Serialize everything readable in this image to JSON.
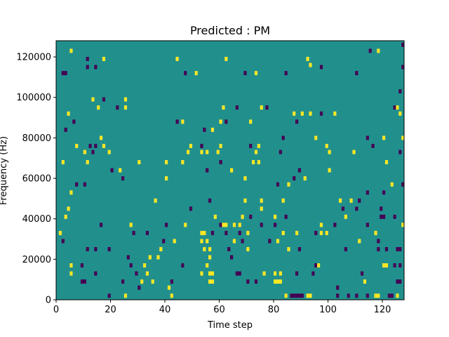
{
  "chart_data": {
    "type": "heatmap",
    "title": "Predicted : PM",
    "xlabel": "Time step",
    "ylabel": "Frequency (Hz)",
    "xlim": [
      0,
      128
    ],
    "ylim": [
      0,
      128000
    ],
    "xticks": [
      0,
      20,
      40,
      60,
      80,
      100,
      120
    ],
    "xtick_labels": [
      "0",
      "20",
      "40",
      "60",
      "80",
      "100",
      "120"
    ],
    "yticks": [
      0,
      20000,
      40000,
      60000,
      80000,
      100000,
      120000
    ],
    "ytick_labels": [
      "0",
      "20000",
      "40000",
      "60000",
      "80000",
      "100000",
      "120000"
    ],
    "grid": false,
    "value_range": [
      -1,
      1
    ],
    "colors": {
      "background": "#21908d",
      "high": "#fde725",
      "low": "#440154"
    },
    "cells": [
      {
        "t": 127,
        "f": 126000,
        "v": -1
      },
      {
        "t": 5,
        "f": 123000,
        "v": 1
      },
      {
        "t": 115,
        "f": 123000,
        "v": -1
      },
      {
        "t": 118,
        "f": 123000,
        "v": 1
      },
      {
        "t": 11,
        "f": 119000,
        "v": -1
      },
      {
        "t": 17,
        "f": 119000,
        "v": 1
      },
      {
        "t": 44,
        "f": 119000,
        "v": 1
      },
      {
        "t": 62,
        "f": 119000,
        "v": 1
      },
      {
        "t": 92,
        "f": 119000,
        "v": 1
      },
      {
        "t": 93,
        "f": 116000,
        "v": 1
      },
      {
        "t": 2,
        "f": 112000,
        "v": -1
      },
      {
        "t": 3,
        "f": 112000,
        "v": -1
      },
      {
        "t": 47,
        "f": 112000,
        "v": -1
      },
      {
        "t": 51,
        "f": 112000,
        "v": 1
      },
      {
        "t": 69,
        "f": 112000,
        "v": -1
      },
      {
        "t": 73,
        "f": 112000,
        "v": 1
      },
      {
        "t": 84,
        "f": 112000,
        "v": -1
      },
      {
        "t": 110,
        "f": 112000,
        "v": -1
      },
      {
        "t": 11,
        "f": 115000,
        "v": -1
      },
      {
        "t": 14,
        "f": 115000,
        "v": -1
      },
      {
        "t": 97,
        "f": 115000,
        "v": -1
      },
      {
        "t": 127,
        "f": 115000,
        "v": -1
      },
      {
        "t": 126,
        "f": 103000,
        "v": -1
      },
      {
        "t": 13,
        "f": 99000,
        "v": 1
      },
      {
        "t": 17,
        "f": 99000,
        "v": -1
      },
      {
        "t": 25,
        "f": 99000,
        "v": 1
      },
      {
        "t": 15,
        "f": 95000,
        "v": 1
      },
      {
        "t": 22,
        "f": 95000,
        "v": -1
      },
      {
        "t": 25,
        "f": 95000,
        "v": 1
      },
      {
        "t": 61,
        "f": 95000,
        "v": 1
      },
      {
        "t": 66,
        "f": 95000,
        "v": -1
      },
      {
        "t": 75,
        "f": 95000,
        "v": 1
      },
      {
        "t": 77,
        "f": 95000,
        "v": -1
      },
      {
        "t": 124,
        "f": 95000,
        "v": -1
      },
      {
        "t": 125,
        "f": 95000,
        "v": 1
      },
      {
        "t": 4,
        "f": 92000,
        "v": 1
      },
      {
        "t": 87,
        "f": 92000,
        "v": 1
      },
      {
        "t": 90,
        "f": 92000,
        "v": 1
      },
      {
        "t": 93,
        "f": 92000,
        "v": 1
      },
      {
        "t": 97,
        "f": 92000,
        "v": -1
      },
      {
        "t": 102,
        "f": 92000,
        "v": 1
      },
      {
        "t": 126,
        "f": 92000,
        "v": 1
      },
      {
        "t": 6,
        "f": 88000,
        "v": -1
      },
      {
        "t": 44,
        "f": 88000,
        "v": -1
      },
      {
        "t": 46,
        "f": 88000,
        "v": 1
      },
      {
        "t": 60,
        "f": 88000,
        "v": 1
      },
      {
        "t": 62,
        "f": 88000,
        "v": -1
      },
      {
        "t": 71,
        "f": 88000,
        "v": 1
      },
      {
        "t": 88,
        "f": 88000,
        "v": -1
      },
      {
        "t": 3,
        "f": 84000,
        "v": -1
      },
      {
        "t": 54,
        "f": 84000,
        "v": -1
      },
      {
        "t": 57,
        "f": 84000,
        "v": 1
      },
      {
        "t": 16,
        "f": 80000,
        "v": 1
      },
      {
        "t": 83,
        "f": 80000,
        "v": -1
      },
      {
        "t": 95,
        "f": 80000,
        "v": 1
      },
      {
        "t": 114,
        "f": 80000,
        "v": -1
      },
      {
        "t": 120,
        "f": 80000,
        "v": 1
      },
      {
        "t": 127,
        "f": 80000,
        "v": 1
      },
      {
        "t": 7,
        "f": 76000,
        "v": 1
      },
      {
        "t": 12,
        "f": 76000,
        "v": -1
      },
      {
        "t": 14,
        "f": 76000,
        "v": -1
      },
      {
        "t": 17,
        "f": 76000,
        "v": 1
      },
      {
        "t": 49,
        "f": 76000,
        "v": 1
      },
      {
        "t": 53,
        "f": 76000,
        "v": -1
      },
      {
        "t": 60,
        "f": 76000,
        "v": 1
      },
      {
        "t": 71,
        "f": 76000,
        "v": -1
      },
      {
        "t": 74,
        "f": 76000,
        "v": 1
      },
      {
        "t": 99,
        "f": 76000,
        "v": 1
      },
      {
        "t": 116,
        "f": 76000,
        "v": -1
      },
      {
        "t": 10,
        "f": 73000,
        "v": 1
      },
      {
        "t": 13,
        "f": 73000,
        "v": -1
      },
      {
        "t": 19,
        "f": 73000,
        "v": 1
      },
      {
        "t": 48,
        "f": 73000,
        "v": 1
      },
      {
        "t": 53,
        "f": 73000,
        "v": 1
      },
      {
        "t": 55,
        "f": 73000,
        "v": 1
      },
      {
        "t": 59,
        "f": 73000,
        "v": 1
      },
      {
        "t": 73,
        "f": 73000,
        "v": 1
      },
      {
        "t": 82,
        "f": 73000,
        "v": -1
      },
      {
        "t": 100,
        "f": 73000,
        "v": 1
      },
      {
        "t": 109,
        "f": 73000,
        "v": 1
      },
      {
        "t": 126,
        "f": 73000,
        "v": -1
      },
      {
        "t": 2,
        "f": 68000,
        "v": 1
      },
      {
        "t": 11,
        "f": 68000,
        "v": 1
      },
      {
        "t": 30,
        "f": 68000,
        "v": 1
      },
      {
        "t": 40,
        "f": 68000,
        "v": 1
      },
      {
        "t": 46,
        "f": 68000,
        "v": 1
      },
      {
        "t": 60,
        "f": 68000,
        "v": -1
      },
      {
        "t": 72,
        "f": 68000,
        "v": 1
      },
      {
        "t": 74,
        "f": 68000,
        "v": 1
      },
      {
        "t": 121,
        "f": 68000,
        "v": 1
      },
      {
        "t": 20,
        "f": 64000,
        "v": -1
      },
      {
        "t": 23,
        "f": 64000,
        "v": 1
      },
      {
        "t": 55,
        "f": 64000,
        "v": -1
      },
      {
        "t": 64,
        "f": 64000,
        "v": 1
      },
      {
        "t": 89,
        "f": 64000,
        "v": -1
      },
      {
        "t": 100,
        "f": 64000,
        "v": 1
      },
      {
        "t": 24,
        "f": 60000,
        "v": -1
      },
      {
        "t": 40,
        "f": 60000,
        "v": 1
      },
      {
        "t": 69,
        "f": 60000,
        "v": 1
      },
      {
        "t": 87,
        "f": 60000,
        "v": -1
      },
      {
        "t": 91,
        "f": 60000,
        "v": 1
      },
      {
        "t": 7,
        "f": 57000,
        "v": -1
      },
      {
        "t": 10,
        "f": 57000,
        "v": -1
      },
      {
        "t": 81,
        "f": 57000,
        "v": -1
      },
      {
        "t": 85,
        "f": 57000,
        "v": 1
      },
      {
        "t": 123,
        "f": 57000,
        "v": 1
      },
      {
        "t": 127,
        "f": 57000,
        "v": -1
      },
      {
        "t": 5,
        "f": 53000,
        "v": 1
      },
      {
        "t": 114,
        "f": 53000,
        "v": -1
      },
      {
        "t": 120,
        "f": 53000,
        "v": -1
      },
      {
        "t": 36,
        "f": 49000,
        "v": 1
      },
      {
        "t": 56,
        "f": 49000,
        "v": -1
      },
      {
        "t": 69,
        "f": 49000,
        "v": 1
      },
      {
        "t": 75,
        "f": 49000,
        "v": 1
      },
      {
        "t": 83,
        "f": 49000,
        "v": 1
      },
      {
        "t": 104,
        "f": 49000,
        "v": 1
      },
      {
        "t": 108,
        "f": 49000,
        "v": 1
      },
      {
        "t": 111,
        "f": 49000,
        "v": -1
      },
      {
        "t": 4,
        "f": 45000,
        "v": 1
      },
      {
        "t": 49,
        "f": 45000,
        "v": -1
      },
      {
        "t": 75,
        "f": 45000,
        "v": 1
      },
      {
        "t": 105,
        "f": 45000,
        "v": -1
      },
      {
        "t": 110,
        "f": 45000,
        "v": -1
      },
      {
        "t": 119,
        "f": 45000,
        "v": -1
      },
      {
        "t": 3,
        "f": 41000,
        "v": 1
      },
      {
        "t": 58,
        "f": 41000,
        "v": 1
      },
      {
        "t": 68,
        "f": 41000,
        "v": 1
      },
      {
        "t": 71,
        "f": 41000,
        "v": -1
      },
      {
        "t": 80,
        "f": 41000,
        "v": 1
      },
      {
        "t": 84,
        "f": 41000,
        "v": -1
      },
      {
        "t": 106,
        "f": 41000,
        "v": 1
      },
      {
        "t": 119,
        "f": 41000,
        "v": -1
      },
      {
        "t": 120,
        "f": 41000,
        "v": -1
      },
      {
        "t": 124,
        "f": 41000,
        "v": -1
      },
      {
        "t": 16,
        "f": 37000,
        "v": -1
      },
      {
        "t": 27,
        "f": 37000,
        "v": 1
      },
      {
        "t": 40,
        "f": 37000,
        "v": -1
      },
      {
        "t": 47,
        "f": 37000,
        "v": 1
      },
      {
        "t": 60,
        "f": 37000,
        "v": -1
      },
      {
        "t": 61,
        "f": 37000,
        "v": 1
      },
      {
        "t": 62,
        "f": 37000,
        "v": 1
      },
      {
        "t": 65,
        "f": 37000,
        "v": 1
      },
      {
        "t": 67,
        "f": 37000,
        "v": 1
      },
      {
        "t": 75,
        "f": 37000,
        "v": -1
      },
      {
        "t": 80,
        "f": 37000,
        "v": -1
      },
      {
        "t": 97,
        "f": 37000,
        "v": 1
      },
      {
        "t": 102,
        "f": 37000,
        "v": -1
      },
      {
        "t": 114,
        "f": 37000,
        "v": -1
      },
      {
        "t": 127,
        "f": 37000,
        "v": 1
      },
      {
        "t": 1,
        "f": 33000,
        "v": 1
      },
      {
        "t": 28,
        "f": 33000,
        "v": -1
      },
      {
        "t": 33,
        "f": 33000,
        "v": -1
      },
      {
        "t": 53,
        "f": 33000,
        "v": 1
      },
      {
        "t": 54,
        "f": 33000,
        "v": 1
      },
      {
        "t": 57,
        "f": 33000,
        "v": -1
      },
      {
        "t": 62,
        "f": 33000,
        "v": -1
      },
      {
        "t": 67,
        "f": 33000,
        "v": -1
      },
      {
        "t": 70,
        "f": 33000,
        "v": 1
      },
      {
        "t": 83,
        "f": 33000,
        "v": 1
      },
      {
        "t": 88,
        "f": 33000,
        "v": 1
      },
      {
        "t": 95,
        "f": 33000,
        "v": -1
      },
      {
        "t": 97,
        "f": 33000,
        "v": 1
      },
      {
        "t": 99,
        "f": 33000,
        "v": 1
      },
      {
        "t": 117,
        "f": 33000,
        "v": 1
      },
      {
        "t": 2,
        "f": 29000,
        "v": -1
      },
      {
        "t": 39,
        "f": 29000,
        "v": -1
      },
      {
        "t": 43,
        "f": 29000,
        "v": 1
      },
      {
        "t": 53,
        "f": 29000,
        "v": 1
      },
      {
        "t": 55,
        "f": 29000,
        "v": 1
      },
      {
        "t": 65,
        "f": 29000,
        "v": 1
      },
      {
        "t": 68,
        "f": 29000,
        "v": -1
      },
      {
        "t": 78,
        "f": 29000,
        "v": -1
      },
      {
        "t": 81,
        "f": 29000,
        "v": 1
      },
      {
        "t": 111,
        "f": 29000,
        "v": 1
      },
      {
        "t": 118,
        "f": 29000,
        "v": -1
      },
      {
        "t": 11,
        "f": 25000,
        "v": -1
      },
      {
        "t": 14,
        "f": 25000,
        "v": -1
      },
      {
        "t": 19,
        "f": 25000,
        "v": -1
      },
      {
        "t": 38,
        "f": 25000,
        "v": 1
      },
      {
        "t": 54,
        "f": 25000,
        "v": 1
      },
      {
        "t": 56,
        "f": 25000,
        "v": 1
      },
      {
        "t": 63,
        "f": 25000,
        "v": -1
      },
      {
        "t": 70,
        "f": 25000,
        "v": 1
      },
      {
        "t": 85,
        "f": 25000,
        "v": 1
      },
      {
        "t": 89,
        "f": 25000,
        "v": -1
      },
      {
        "t": 106,
        "f": 25000,
        "v": -1
      },
      {
        "t": 118,
        "f": 25000,
        "v": -1
      },
      {
        "t": 121,
        "f": 25000,
        "v": -1
      },
      {
        "t": 125,
        "f": 25000,
        "v": -1
      },
      {
        "t": 126,
        "f": 25000,
        "v": -1
      },
      {
        "t": 26,
        "f": 21000,
        "v": -1
      },
      {
        "t": 34,
        "f": 21000,
        "v": 1
      },
      {
        "t": 37,
        "f": 21000,
        "v": 1
      },
      {
        "t": 56,
        "f": 21000,
        "v": 1
      },
      {
        "t": 64,
        "f": 21000,
        "v": -1
      },
      {
        "t": 5,
        "f": 17000,
        "v": 1
      },
      {
        "t": 9,
        "f": 17000,
        "v": -1
      },
      {
        "t": 27,
        "f": 17000,
        "v": -1
      },
      {
        "t": 32,
        "f": 17000,
        "v": 1
      },
      {
        "t": 46,
        "f": 17000,
        "v": -1
      },
      {
        "t": 55,
        "f": 17000,
        "v": 1
      },
      {
        "t": 95,
        "f": 17000,
        "v": -1
      },
      {
        "t": 96,
        "f": 17000,
        "v": 1
      },
      {
        "t": 120,
        "f": 17000,
        "v": 1
      },
      {
        "t": 121,
        "f": 17000,
        "v": 1
      },
      {
        "t": 124,
        "f": 17000,
        "v": -1
      },
      {
        "t": 126,
        "f": 17000,
        "v": -1
      },
      {
        "t": 5,
        "f": 13000,
        "v": 1
      },
      {
        "t": 14,
        "f": 13000,
        "v": -1
      },
      {
        "t": 29,
        "f": 13000,
        "v": -1
      },
      {
        "t": 33,
        "f": 13000,
        "v": 1
      },
      {
        "t": 53,
        "f": 13000,
        "v": 1
      },
      {
        "t": 56,
        "f": 13000,
        "v": 1
      },
      {
        "t": 57,
        "f": 13000,
        "v": 1
      },
      {
        "t": 66,
        "f": 13000,
        "v": -1
      },
      {
        "t": 67,
        "f": 13000,
        "v": -1
      },
      {
        "t": 76,
        "f": 13000,
        "v": 1
      },
      {
        "t": 80,
        "f": 13000,
        "v": 1
      },
      {
        "t": 82,
        "f": 13000,
        "v": 1
      },
      {
        "t": 88,
        "f": 13000,
        "v": -1
      },
      {
        "t": 94,
        "f": 13000,
        "v": -1
      },
      {
        "t": 112,
        "f": 13000,
        "v": -1
      },
      {
        "t": 9,
        "f": 9000,
        "v": -1
      },
      {
        "t": 10,
        "f": 9000,
        "v": -1
      },
      {
        "t": 24,
        "f": 9000,
        "v": -1
      },
      {
        "t": 31,
        "f": 9000,
        "v": 1
      },
      {
        "t": 35,
        "f": 9000,
        "v": 1
      },
      {
        "t": 42,
        "f": 9000,
        "v": -1
      },
      {
        "t": 56,
        "f": 9000,
        "v": 1
      },
      {
        "t": 57,
        "f": 9000,
        "v": 1
      },
      {
        "t": 70,
        "f": 9000,
        "v": -1
      },
      {
        "t": 73,
        "f": 9000,
        "v": -1
      },
      {
        "t": 80,
        "f": 9000,
        "v": 1
      },
      {
        "t": 81,
        "f": 9000,
        "v": 1
      },
      {
        "t": 82,
        "f": 9000,
        "v": 1
      },
      {
        "t": 113,
        "f": 9000,
        "v": 1
      },
      {
        "t": 125,
        "f": 9000,
        "v": -1
      },
      {
        "t": 126,
        "f": 9000,
        "v": -1
      },
      {
        "t": 30,
        "f": 6000,
        "v": -1
      },
      {
        "t": 41,
        "f": 6000,
        "v": 1
      },
      {
        "t": 103,
        "f": 6000,
        "v": -1
      },
      {
        "t": 19,
        "f": 2000,
        "v": -1
      },
      {
        "t": 25,
        "f": 2000,
        "v": 1
      },
      {
        "t": 42,
        "f": 2000,
        "v": 1
      },
      {
        "t": 84,
        "f": 2000,
        "v": 1
      },
      {
        "t": 86,
        "f": 2000,
        "v": -1
      },
      {
        "t": 87,
        "f": 2000,
        "v": -1
      },
      {
        "t": 88,
        "f": 2000,
        "v": -1
      },
      {
        "t": 89,
        "f": 2000,
        "v": -1
      },
      {
        "t": 90,
        "f": 2000,
        "v": -1
      },
      {
        "t": 92,
        "f": 2000,
        "v": 1
      },
      {
        "t": 93,
        "f": 2000,
        "v": 1
      },
      {
        "t": 103,
        "f": 2000,
        "v": -1
      },
      {
        "t": 107,
        "f": 2000,
        "v": -1
      },
      {
        "t": 110,
        "f": 2000,
        "v": -1
      },
      {
        "t": 114,
        "f": 2000,
        "v": -1
      },
      {
        "t": 117,
        "f": 2000,
        "v": 1
      },
      {
        "t": 118,
        "f": 2000,
        "v": 1
      },
      {
        "t": 122,
        "f": 2000,
        "v": -1
      },
      {
        "t": 123,
        "f": 2000,
        "v": -1
      },
      {
        "t": 125,
        "f": 2000,
        "v": 1
      }
    ]
  }
}
